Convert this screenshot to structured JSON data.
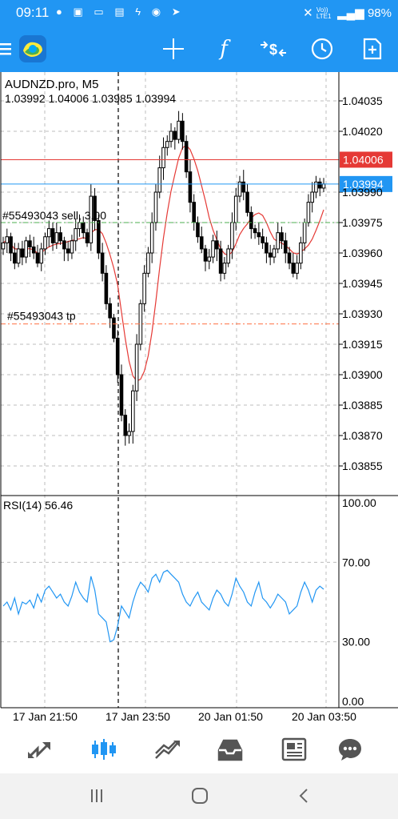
{
  "status_bar": {
    "time": "09:11",
    "notification_icons": [
      "spotify-icon",
      "image-icon",
      "cast-icon",
      "book-icon",
      "bolt-icon",
      "chat-icon",
      "send-icon"
    ],
    "network_label": "Vo)) LTE1",
    "battery": "98%"
  },
  "toolbar": {
    "items": [
      "menu-icon",
      "app-logo",
      "crosshair-icon",
      "function-icon",
      "symbol-icon",
      "clock-icon",
      "add-document-icon"
    ]
  },
  "chart": {
    "symbol_header": "AUDNZD.pro, M5",
    "ohlc_header": "1.03992 1.04006 1.03985 1.03994",
    "price_labels": [
      "1.04035",
      "1.04020",
      "1.03990",
      "1.03975",
      "1.03960",
      "1.03945",
      "1.03930",
      "1.03915",
      "1.03900",
      "1.03885",
      "1.03870",
      "1.03855"
    ],
    "current_bid": "1.03994",
    "current_ask": "1.04006",
    "order_label": "#55493043 sell, 3.00",
    "tp_label": "#55493043 tp",
    "rsi_title": "RSI(14) 56.46",
    "rsi_levels": [
      "100.00",
      "70.00",
      "30.00",
      "0.00"
    ],
    "time_labels": [
      "17 Jan 21:50",
      "17 Jan 23:50",
      "20 Jan 01:50",
      "20 Jan 03:50"
    ],
    "colors": {
      "bid_line": "#2196f3",
      "ask_line": "#e53935",
      "ma_line": "#e53935",
      "rsi_line": "#2196f3",
      "order_line": "#4caf50",
      "tp_line": "#ff7043"
    }
  },
  "bottom_nav": {
    "items": [
      "quotes-icon",
      "chart-icon",
      "trade-icon",
      "history-icon",
      "news-icon",
      "messages-icon"
    ],
    "active": "chart-icon"
  },
  "system_nav": {
    "items": [
      "recents-icon",
      "home-icon",
      "back-icon"
    ]
  }
}
